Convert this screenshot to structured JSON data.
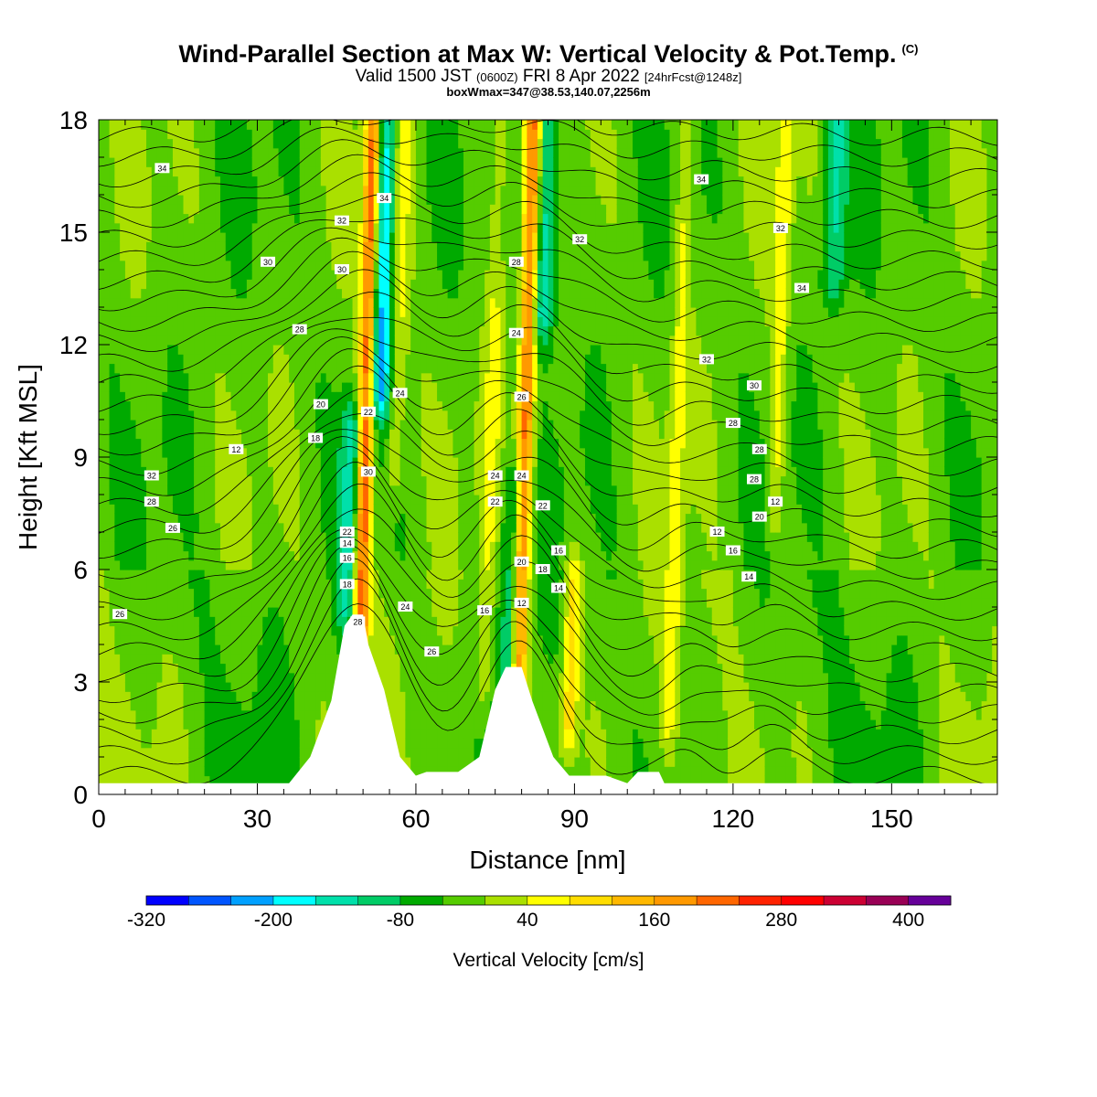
{
  "title": "Wind-Parallel Section at Max W: Vertical Velocity & Pot.Temp.",
  "title_mark": "(C)",
  "subtitle_main": "Valid 1500 JST",
  "subtitle_utc": "(0600Z)",
  "subtitle_date": "FRI 8 Apr 2022",
  "subtitle_run": "[24hrFcst@1248z]",
  "subtitle2": "boxWmax=347@38.53,140.07,2256m",
  "chart_data": {
    "type": "heatmap",
    "xlabel": "Distance [nm]",
    "ylabel": "Height [Kft MSL]",
    "xlim": [
      0,
      170
    ],
    "ylim": [
      0,
      18
    ],
    "x_ticks": [
      0,
      30,
      60,
      90,
      120,
      150
    ],
    "y_ticks": [
      0,
      3,
      6,
      9,
      12,
      15,
      18
    ],
    "colorbar": {
      "label": "Vertical Velocity [cm/s]",
      "tick_values": [
        -320,
        -200,
        -80,
        40,
        160,
        280,
        400
      ],
      "tick_labels": [
        "-320",
        "-200",
        "-80",
        "40",
        "160",
        "280",
        "400"
      ],
      "min": -320,
      "max": 440,
      "colors": [
        "#0000ff",
        "#0055ff",
        "#00a0ff",
        "#00ffff",
        "#00e0aa",
        "#00cc66",
        "#00aa00",
        "#55cc00",
        "#aae000",
        "#ffff00",
        "#ffdd00",
        "#ffb800",
        "#ff9900",
        "#ff6600",
        "#ff2200",
        "#ff0000",
        "#cc0033",
        "#990055",
        "#660099"
      ]
    },
    "background_value": -20,
    "updrafts": [
      {
        "x": 49.5,
        "y_bottom": 4.8,
        "y_top": 18,
        "value": 300
      },
      {
        "x": 79.5,
        "y_bottom": 3.5,
        "y_top": 18,
        "value": 250
      },
      {
        "x": 89,
        "y_bottom": 2.2,
        "y_top": 5.5,
        "value": 130
      },
      {
        "x": 56,
        "y_bottom": 9,
        "y_top": 18,
        "value": 80
      },
      {
        "x": 73,
        "y_bottom": 3,
        "y_top": 18,
        "value": 60
      },
      {
        "x": 108,
        "y_bottom": 2,
        "y_top": 18,
        "value": 70
      },
      {
        "x": 128,
        "y_bottom": 8,
        "y_top": 18,
        "value": 80
      }
    ],
    "downdrafts": [
      {
        "x": 53,
        "y_bottom": 11,
        "y_top": 18,
        "value": -200
      },
      {
        "x": 84,
        "y_bottom": 13,
        "y_top": 18,
        "value": -150
      },
      {
        "x": 47.5,
        "y_bottom": 5,
        "y_top": 9.5,
        "value": -120
      },
      {
        "x": 78,
        "y_bottom": 3.5,
        "y_top": 8,
        "value": -110
      },
      {
        "x": 139,
        "y_bottom": 14,
        "y_top": 18,
        "value": -110
      }
    ],
    "terrain": [
      [
        0,
        0.3
      ],
      [
        36,
        0.3
      ],
      [
        40,
        1
      ],
      [
        44,
        2.5
      ],
      [
        46.5,
        4.5
      ],
      [
        48,
        4.8
      ],
      [
        50,
        4.8
      ],
      [
        51,
        4
      ],
      [
        54,
        2.8
      ],
      [
        57,
        1
      ],
      [
        60,
        0.5
      ],
      [
        62,
        0.6
      ],
      [
        68,
        0.6
      ],
      [
        72,
        1
      ],
      [
        75,
        2.8
      ],
      [
        77,
        3.4
      ],
      [
        80,
        3.4
      ],
      [
        82,
        2.5
      ],
      [
        86,
        1
      ],
      [
        89,
        0.5
      ],
      [
        96,
        0.5
      ],
      [
        100,
        0.3
      ],
      [
        102,
        0.6
      ],
      [
        106,
        0.6
      ],
      [
        107,
        0.3
      ],
      [
        170,
        0.3
      ]
    ],
    "isentrope_labels": [
      "34",
      "34",
      "32",
      "32",
      "30",
      "30",
      "28",
      "28",
      "24",
      "22",
      "20",
      "18",
      "12",
      "30",
      "32",
      "28",
      "26",
      "26",
      "24",
      "34",
      "32",
      "34",
      "32",
      "30",
      "28",
      "28",
      "28",
      "26",
      "24",
      "24",
      "22",
      "22",
      "20",
      "18",
      "16",
      "14",
      "12",
      "16",
      "14",
      "12",
      "20",
      "18",
      "16",
      "14",
      "22",
      "24",
      "26",
      "28",
      "16",
      "12"
    ]
  }
}
